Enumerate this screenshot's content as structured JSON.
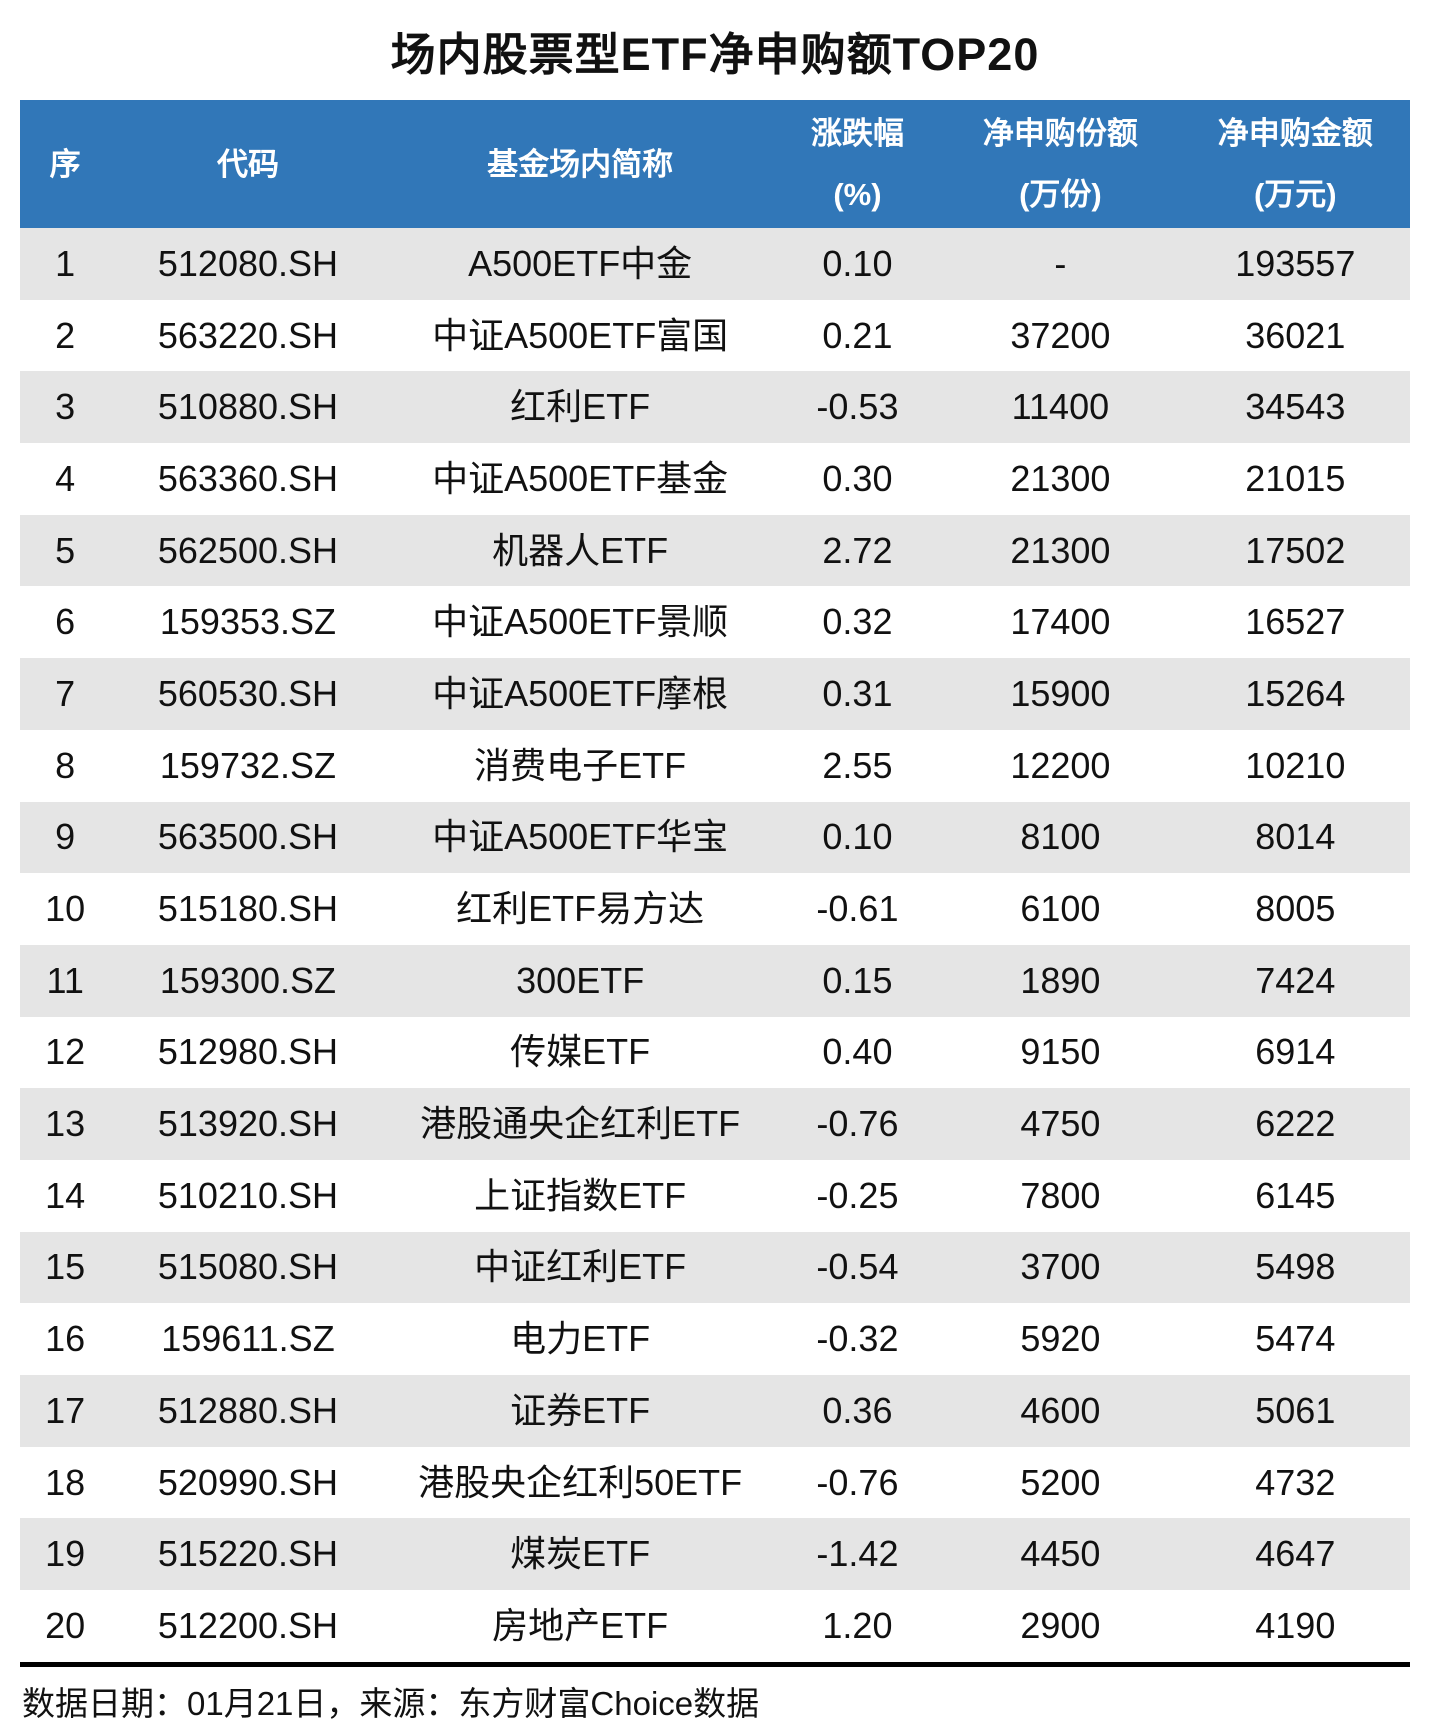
{
  "title": "场内股票型ETF净申购额TOP20",
  "header": {
    "columns": [
      {
        "line1": "序",
        "line2": ""
      },
      {
        "line1": "代码",
        "line2": ""
      },
      {
        "line1": "基金场内简称",
        "line2": ""
      },
      {
        "line1": "涨跌幅",
        "line2": "(%)"
      },
      {
        "line1": "净申购份额",
        "line2": "(万份)"
      },
      {
        "line1": "净申购金额",
        "line2": "(万元)"
      }
    ]
  },
  "chart_data": {
    "type": "table",
    "title": "场内股票型ETF净申购额TOP20",
    "columns": [
      "序",
      "代码",
      "基金场内简称",
      "涨跌幅(%)",
      "净申购份额(万份)",
      "净申购金额(万元)"
    ],
    "rows": [
      [
        "1",
        "512080.SH",
        "A500ETF中金",
        "0.10",
        "-",
        "193557"
      ],
      [
        "2",
        "563220.SH",
        "中证A500ETF富国",
        "0.21",
        "37200",
        "36021"
      ],
      [
        "3",
        "510880.SH",
        "红利ETF",
        "-0.53",
        "11400",
        "34543"
      ],
      [
        "4",
        "563360.SH",
        "中证A500ETF基金",
        "0.30",
        "21300",
        "21015"
      ],
      [
        "5",
        "562500.SH",
        "机器人ETF",
        "2.72",
        "21300",
        "17502"
      ],
      [
        "6",
        "159353.SZ",
        "中证A500ETF景顺",
        "0.32",
        "17400",
        "16527"
      ],
      [
        "7",
        "560530.SH",
        "中证A500ETF摩根",
        "0.31",
        "15900",
        "15264"
      ],
      [
        "8",
        "159732.SZ",
        "消费电子ETF",
        "2.55",
        "12200",
        "10210"
      ],
      [
        "9",
        "563500.SH",
        "中证A500ETF华宝",
        "0.10",
        "8100",
        "8014"
      ],
      [
        "10",
        "515180.SH",
        "红利ETF易方达",
        "-0.61",
        "6100",
        "8005"
      ],
      [
        "11",
        "159300.SZ",
        "300ETF",
        "0.15",
        "1890",
        "7424"
      ],
      [
        "12",
        "512980.SH",
        "传媒ETF",
        "0.40",
        "9150",
        "6914"
      ],
      [
        "13",
        "513920.SH",
        "港股通央企红利ETF",
        "-0.76",
        "4750",
        "6222"
      ],
      [
        "14",
        "510210.SH",
        "上证指数ETF",
        "-0.25",
        "7800",
        "6145"
      ],
      [
        "15",
        "515080.SH",
        "中证红利ETF",
        "-0.54",
        "3700",
        "5498"
      ],
      [
        "16",
        "159611.SZ",
        "电力ETF",
        "-0.32",
        "5920",
        "5474"
      ],
      [
        "17",
        "512880.SH",
        "证券ETF",
        "0.36",
        "4600",
        "5061"
      ],
      [
        "18",
        "520990.SH",
        "港股央企红利50ETF",
        "-0.76",
        "5200",
        "4732"
      ],
      [
        "19",
        "515220.SH",
        "煤炭ETF",
        "-1.42",
        "4450",
        "4647"
      ],
      [
        "20",
        "512200.SH",
        "房地产ETF",
        "1.20",
        "2900",
        "4190"
      ]
    ]
  },
  "footer": {
    "text": "数据日期：01月21日，来源：东方财富Choice数据"
  },
  "colors": {
    "header_bg": "#3177b8",
    "header_text": "#ffffff",
    "row_alt_bg": "#e5e5e5",
    "body_text": "#111111",
    "rule": "#000000"
  }
}
